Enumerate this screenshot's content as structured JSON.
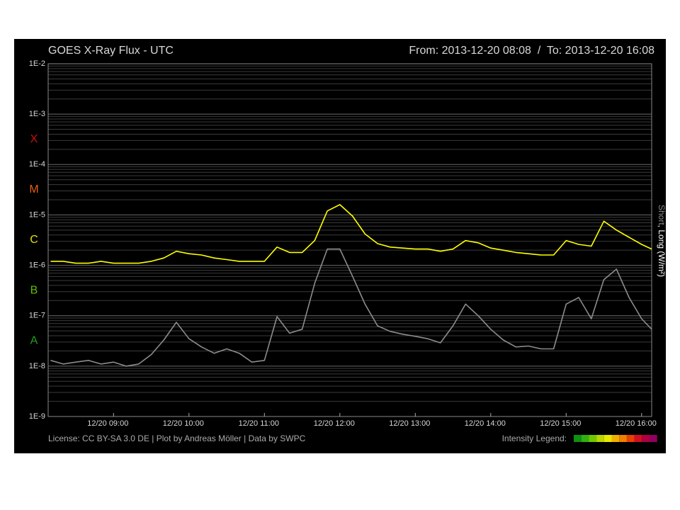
{
  "chart_data": {
    "type": "line",
    "title": "GOES X-Ray Flux - UTC",
    "subtitle": "From: 2013-12-20 08:08  /  To: 2013-12-20 16:08",
    "footer": "License: CC BY-SA 3.0 DE | Plot by Andreas Möller | Data by SWPC",
    "intensity_legend": {
      "label": "Intensity Legend:",
      "colors": [
        "#109010",
        "#30b010",
        "#70c800",
        "#b8d800",
        "#e8e800",
        "#f0b000",
        "#f08000",
        "#e84000",
        "#d01020",
        "#b00040",
        "#900060"
      ]
    },
    "y_label": "(W/m²)",
    "legend_separator": ", ",
    "log_scale": true,
    "grid": true,
    "flare_classes": [
      {
        "label": "X",
        "color": "#cc1010"
      },
      {
        "label": "M",
        "color": "#e06010"
      },
      {
        "label": "C",
        "color": "#e0e000"
      },
      {
        "label": "B",
        "color": "#60c000"
      },
      {
        "label": "A",
        "color": "#20a020"
      }
    ],
    "xlim": [
      "12/20 08:08",
      "12/20 16:08"
    ],
    "xticks": [
      "12/20 09:00",
      "12/20 10:00",
      "12/20 11:00",
      "12/20 12:00",
      "12/20 13:00",
      "12/20 14:00",
      "12/20 15:00",
      "12/20 16:00"
    ],
    "ylim": [
      1e-09,
      0.01
    ],
    "yticks": [
      {
        "value": 0.01,
        "label": "1E-2"
      },
      {
        "value": 0.001,
        "label": "1E-3"
      },
      {
        "value": 0.0001,
        "label": "1E-4"
      },
      {
        "value": 1e-05,
        "label": "1E-5"
      },
      {
        "value": 1e-06,
        "label": "1E-6"
      },
      {
        "value": 1e-07,
        "label": "1E-7"
      },
      {
        "value": 1e-08,
        "label": "1E-8"
      },
      {
        "value": 1e-09,
        "label": "1E-9"
      }
    ],
    "x": [
      "12/20 08:10",
      "12/20 08:20",
      "12/20 08:30",
      "12/20 08:40",
      "12/20 08:50",
      "12/20 09:00",
      "12/20 09:10",
      "12/20 09:20",
      "12/20 09:30",
      "12/20 09:40",
      "12/20 09:50",
      "12/20 10:00",
      "12/20 10:10",
      "12/20 10:20",
      "12/20 10:30",
      "12/20 10:40",
      "12/20 10:50",
      "12/20 11:00",
      "12/20 11:10",
      "12/20 11:20",
      "12/20 11:30",
      "12/20 11:40",
      "12/20 11:50",
      "12/20 12:00",
      "12/20 12:10",
      "12/20 12:20",
      "12/20 12:30",
      "12/20 12:40",
      "12/20 12:50",
      "12/20 13:00",
      "12/20 13:10",
      "12/20 13:20",
      "12/20 13:30",
      "12/20 13:40",
      "12/20 13:50",
      "12/20 14:00",
      "12/20 14:10",
      "12/20 14:20",
      "12/20 14:30",
      "12/20 14:40",
      "12/20 14:50",
      "12/20 15:00",
      "12/20 15:10",
      "12/20 15:20",
      "12/20 15:30",
      "12/20 15:40",
      "12/20 15:50",
      "12/20 16:00",
      "12/20 16:08"
    ],
    "series": [
      {
        "name": "Short",
        "color": "#8c8c8c",
        "values": [
          1.3e-08,
          1.1e-08,
          1.2e-08,
          1.3e-08,
          1.1e-08,
          1.2e-08,
          1e-08,
          1.1e-08,
          1.7e-08,
          3.3e-08,
          7.4e-08,
          3.5e-08,
          2.4e-08,
          1.8e-08,
          2.2e-08,
          1.8e-08,
          1.2e-08,
          1.3e-08,
          9.6e-08,
          4.5e-08,
          5.4e-08,
          4.4e-07,
          2.1e-06,
          2.1e-06,
          6.1e-07,
          1.7e-07,
          6.3e-08,
          4.9e-08,
          4.3e-08,
          3.9e-08,
          3.5e-08,
          2.9e-08,
          6.3e-08,
          1.7e-07,
          1e-07,
          5.4e-08,
          3.3e-08,
          2.4e-08,
          2.5e-08,
          2.2e-08,
          2.2e-08,
          1.7e-07,
          2.3e-07,
          8.7e-08,
          5.2e-07,
          8.4e-07,
          2.3e-07,
          8.7e-08,
          5.4e-08
        ]
      },
      {
        "name": "Long",
        "color": "#ffff00",
        "values": [
          1.2e-06,
          1.2e-06,
          1.1e-06,
          1.1e-06,
          1.2e-06,
          1.1e-06,
          1.1e-06,
          1.1e-06,
          1.2e-06,
          1.4e-06,
          1.9e-06,
          1.7e-06,
          1.6e-06,
          1.4e-06,
          1.3e-06,
          1.2e-06,
          1.2e-06,
          1.2e-06,
          2.3e-06,
          1.8e-06,
          1.8e-06,
          3.1e-06,
          1.2e-05,
          1.6e-05,
          9.5e-06,
          4.2e-06,
          2.7e-06,
          2.3e-06,
          2.2e-06,
          2.1e-06,
          2.1e-06,
          1.9e-06,
          2.1e-06,
          3.1e-06,
          2.8e-06,
          2.2e-06,
          2e-06,
          1.8e-06,
          1.7e-06,
          1.6e-06,
          1.6e-06,
          3.1e-06,
          2.6e-06,
          2.4e-06,
          7.5e-06,
          5e-06,
          3.6e-06,
          2.6e-06,
          2.1e-06
        ]
      }
    ]
  }
}
